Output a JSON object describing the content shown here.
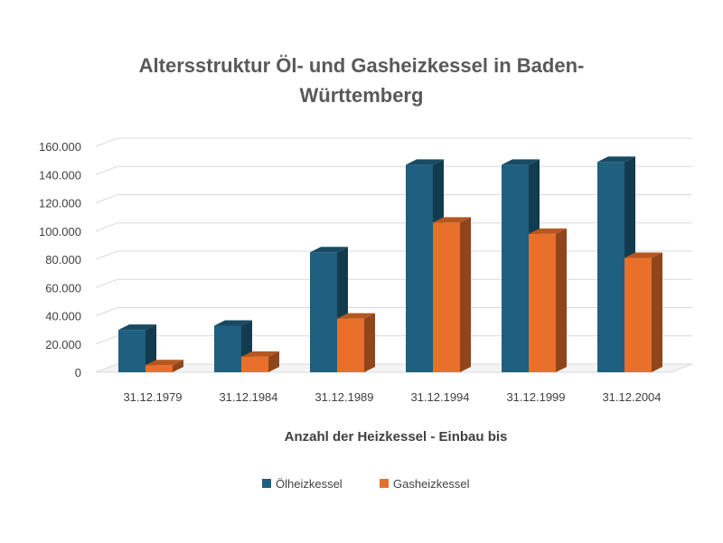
{
  "chart_data": {
    "type": "bar",
    "title": "Altersstruktur Öl- und Gasheizkessel in Baden-Württemberg",
    "xlabel": "Anzahl der Heizkessel - Einbau bis",
    "ylabel": "",
    "categories": [
      "31.12.1979",
      "31.12.1984",
      "31.12.1989",
      "31.12.1994",
      "31.12.1999",
      "31.12.2004"
    ],
    "series": [
      {
        "name": "Ölheizkessel",
        "color": "#1f5f7f",
        "values": [
          30000,
          33000,
          85000,
          147000,
          147000,
          149000
        ]
      },
      {
        "name": "Gasheizkessel",
        "color": "#e8702a",
        "values": [
          5000,
          11000,
          38000,
          106000,
          98000,
          81000
        ]
      }
    ],
    "ylim": [
      0,
      160000
    ],
    "yticks": [
      "0",
      "20.000",
      "40.000",
      "60.000",
      "80.000",
      "100.000",
      "120.000",
      "140.000",
      "160.000"
    ],
    "grid": true,
    "legend": "bottom"
  }
}
